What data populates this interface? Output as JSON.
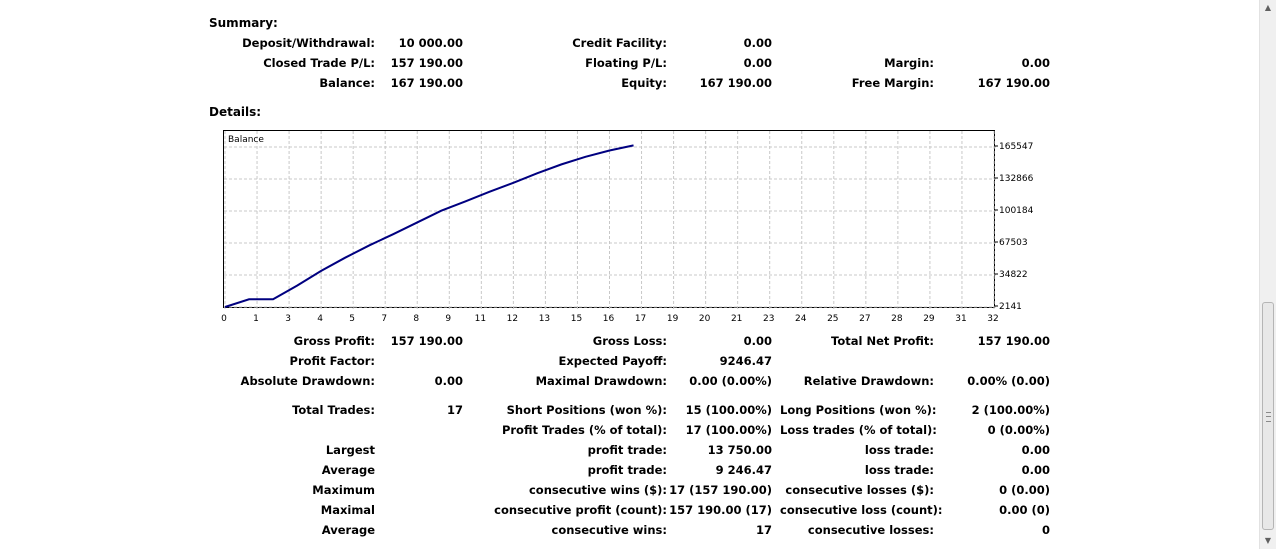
{
  "summary": {
    "heading": "Summary:",
    "deposit_label": "Deposit/Withdrawal:",
    "deposit_value": "10 000.00",
    "credit_label": "Credit Facility:",
    "credit_value": "0.00",
    "closed_pl_label": "Closed Trade P/L:",
    "closed_pl_value": "157 190.00",
    "floating_pl_label": "Floating P/L:",
    "floating_pl_value": "0.00",
    "margin_label": "Margin:",
    "margin_value": "0.00",
    "balance_label": "Balance:",
    "balance_value": "167 190.00",
    "equity_label": "Equity:",
    "equity_value": "167 190.00",
    "free_margin_label": "Free Margin:",
    "free_margin_value": "167 190.00"
  },
  "details": {
    "heading": "Details:"
  },
  "chart_data": {
    "type": "line",
    "title": "Balance",
    "series": [
      {
        "name": "Balance",
        "color": "#000080",
        "x": [
          0,
          1,
          2,
          3,
          4,
          5,
          6,
          7,
          8,
          9,
          10,
          11,
          12,
          13,
          14,
          15,
          16,
          17
        ],
        "values": [
          2141,
          10000,
          10000,
          24000,
          39000,
          52500,
          65000,
          76500,
          88500,
          100500,
          110000,
          119800,
          129000,
          138800,
          147800,
          155500,
          162000,
          167190
        ]
      }
    ],
    "x_ticks": [
      "0",
      "1",
      "3",
      "4",
      "5",
      "7",
      "8",
      "9",
      "11",
      "12",
      "13",
      "15",
      "16",
      "17",
      "19",
      "20",
      "21",
      "23",
      "24",
      "25",
      "27",
      "28",
      "29",
      "31",
      "32"
    ],
    "y_ticks": [
      "165547",
      "132866",
      "100184",
      "67503",
      "34822",
      "2141"
    ],
    "xlim": [
      0,
      32
    ],
    "ylim": [
      2141,
      165547
    ],
    "grid": true
  },
  "stats": {
    "gross_profit_label": "Gross Profit:",
    "gross_profit_value": "157 190.00",
    "gross_loss_label": "Gross Loss:",
    "gross_loss_value": "0.00",
    "total_net_profit_label": "Total Net Profit:",
    "total_net_profit_value": "157 190.00",
    "profit_factor_label": "Profit Factor:",
    "profit_factor_value": "",
    "expected_payoff_label": "Expected Payoff:",
    "expected_payoff_value": "9246.47",
    "absolute_drawdown_label": "Absolute Drawdown:",
    "absolute_drawdown_value": "0.00",
    "maximal_drawdown_label": "Maximal Drawdown:",
    "maximal_drawdown_value": "0.00 (0.00%)",
    "relative_drawdown_label": "Relative Drawdown:",
    "relative_drawdown_value": "0.00% (0.00)",
    "total_trades_label": "Total Trades:",
    "total_trades_value": "17",
    "short_positions_label": "Short Positions (won %):",
    "short_positions_value": "15 (100.00%)",
    "long_positions_label": "Long Positions (won %):",
    "long_positions_value": "2 (100.00%)",
    "profit_trades_label": "Profit Trades (% of total):",
    "profit_trades_value": "17 (100.00%)",
    "loss_trades_label": "Loss trades (% of total):",
    "loss_trades_value": "0 (0.00%)",
    "largest_label": "Largest",
    "largest_profit_label": "profit trade:",
    "largest_profit_value": "13 750.00",
    "largest_loss_label": "loss trade:",
    "largest_loss_value": "0.00",
    "average_label": "Average",
    "average_profit_label": "profit trade:",
    "average_profit_value": "9 246.47",
    "average_loss_label": "loss trade:",
    "average_loss_value": "0.00",
    "maximum_label": "Maximum",
    "max_consec_wins_label": "consecutive wins ($):",
    "max_consec_wins_value": "17 (157 190.00)",
    "max_consec_losses_label": "consecutive losses ($):",
    "max_consec_losses_value": "0 (0.00)",
    "maximal_label": "Maximal",
    "maximal_consec_profit_label": "consecutive profit (count):",
    "maximal_consec_profit_value": "157 190.00 (17)",
    "maximal_consec_loss_label": "consecutive loss (count):",
    "maximal_consec_loss_value": "0.00 (0)",
    "average2_label": "Average",
    "avg_consec_wins_label": "consecutive wins:",
    "avg_consec_wins_value": "17",
    "avg_consec_losses_label": "consecutive losses:",
    "avg_consec_losses_value": "0"
  },
  "scrollbar": {
    "up_icon": "arrow-up",
    "down_icon": "arrow-down"
  }
}
